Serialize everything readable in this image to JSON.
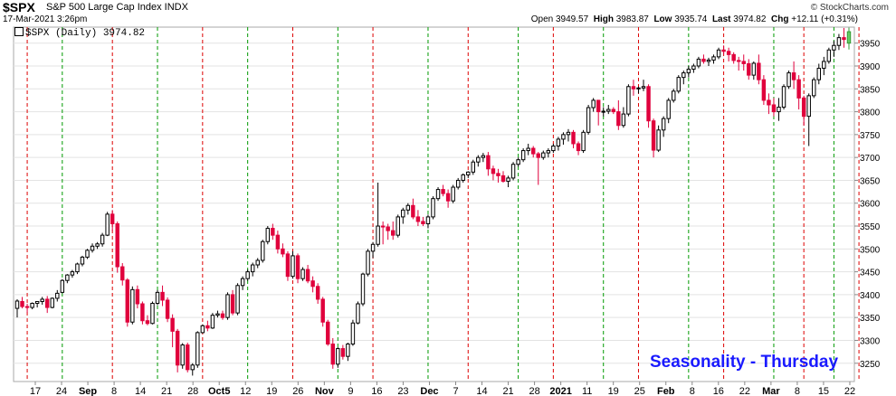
{
  "header": {
    "symbol": "$SPX",
    "name": "S&P 500 Large Cap Index INDX",
    "date": "17-Mar-2021 3:26pm",
    "watermark": "© StockCharts.com",
    "open_label": "Open",
    "open": "3949.57",
    "high_label": "High",
    "high": "3983.87",
    "low_label": "Low",
    "low": "3935.74",
    "last_label": "Last",
    "last": "3974.82",
    "chg_label": "Chg",
    "chg": "+12.11 (+0.31%)"
  },
  "legend": {
    "text": "$SPX (Daily) 3974.82"
  },
  "annotation": {
    "text": "Seasonality - Thursday"
  },
  "colors": {
    "up": "#ffffff",
    "down": "#e0003c",
    "neutral": "#000000",
    "last": "#66cc66",
    "red_line": "#dd0000",
    "green_line": "#009900"
  },
  "chart_data": {
    "type": "candlestick",
    "y_axis": {
      "ylim": [
        3210,
        3985
      ],
      "ticks": [
        3250,
        3300,
        3350,
        3400,
        3450,
        3500,
        3550,
        3600,
        3650,
        3700,
        3750,
        3800,
        3850,
        3900,
        3950
      ],
      "side": "right"
    },
    "x_ticks": [
      "17",
      "24",
      "Sep",
      "8",
      "14",
      "21",
      "28",
      "Oct5",
      "12",
      "19",
      "26",
      "Nov",
      "9",
      "16",
      "23",
      "Dec",
      "7",
      "14",
      "21",
      "28",
      "2021",
      "11",
      "19",
      "25",
      "Feb",
      "8",
      "16",
      "22",
      "Mar",
      "8",
      "15",
      "22"
    ],
    "bold_ticks": [
      "Sep",
      "Oct5",
      "Nov",
      "Dec",
      "2021",
      "Feb",
      "Mar"
    ],
    "candles": [
      [
        3370,
        3390,
        3350,
        3386
      ],
      [
        3385,
        3395,
        3370,
        3374
      ],
      [
        3374,
        3380,
        3360,
        3372
      ],
      [
        3372,
        3383,
        3368,
        3381
      ],
      [
        3381,
        3386,
        3372,
        3385
      ],
      [
        3385,
        3395,
        3378,
        3390
      ],
      [
        3390,
        3397,
        3360,
        3372
      ],
      [
        3372,
        3394,
        3370,
        3392
      ],
      [
        3392,
        3410,
        3385,
        3403
      ],
      [
        3405,
        3434,
        3403,
        3431
      ],
      [
        3431,
        3445,
        3425,
        3443
      ],
      [
        3443,
        3454,
        3437,
        3450
      ],
      [
        3450,
        3470,
        3445,
        3467
      ],
      [
        3467,
        3485,
        3462,
        3482
      ],
      [
        3482,
        3500,
        3478,
        3497
      ],
      [
        3497,
        3512,
        3492,
        3506
      ],
      [
        3506,
        3515,
        3500,
        3511
      ],
      [
        3511,
        3535,
        3505,
        3530
      ],
      [
        3530,
        3581,
        3528,
        3576
      ],
      [
        3576,
        3585,
        3540,
        3555
      ],
      [
        3555,
        3560,
        3448,
        3461
      ],
      [
        3461,
        3469,
        3420,
        3432
      ],
      [
        3432,
        3436,
        3330,
        3340
      ],
      [
        3340,
        3418,
        3335,
        3411
      ],
      [
        3411,
        3420,
        3370,
        3380
      ],
      [
        3380,
        3385,
        3335,
        3343
      ],
      [
        3343,
        3355,
        3333,
        3337
      ],
      [
        3337,
        3385,
        3335,
        3381
      ],
      [
        3381,
        3410,
        3377,
        3405
      ],
      [
        3405,
        3420,
        3375,
        3388
      ],
      [
        3388,
        3394,
        3340,
        3348
      ],
      [
        3348,
        3357,
        3285,
        3320
      ],
      [
        3320,
        3325,
        3230,
        3246
      ],
      [
        3246,
        3294,
        3238,
        3290
      ],
      [
        3290,
        3295,
        3230,
        3236
      ],
      [
        3236,
        3250,
        3223,
        3246
      ],
      [
        3246,
        3320,
        3240,
        3317
      ],
      [
        3317,
        3335,
        3315,
        3332
      ],
      [
        3332,
        3343,
        3320,
        3327
      ],
      [
        3327,
        3360,
        3325,
        3355
      ],
      [
        3355,
        3365,
        3350,
        3358
      ],
      [
        3358,
        3365,
        3345,
        3350
      ],
      [
        3350,
        3405,
        3345,
        3400
      ],
      [
        3400,
        3410,
        3355,
        3360
      ],
      [
        3360,
        3425,
        3355,
        3420
      ],
      [
        3420,
        3440,
        3410,
        3435
      ],
      [
        3435,
        3455,
        3430,
        3450
      ],
      [
        3450,
        3470,
        3440,
        3465
      ],
      [
        3465,
        3480,
        3458,
        3475
      ],
      [
        3475,
        3520,
        3470,
        3516
      ],
      [
        3516,
        3550,
        3510,
        3545
      ],
      [
        3545,
        3555,
        3520,
        3530
      ],
      [
        3530,
        3540,
        3490,
        3500
      ],
      [
        3500,
        3512,
        3482,
        3489
      ],
      [
        3489,
        3495,
        3430,
        3440
      ],
      [
        3440,
        3495,
        3435,
        3485
      ],
      [
        3485,
        3490,
        3425,
        3435
      ],
      [
        3435,
        3460,
        3430,
        3455
      ],
      [
        3455,
        3465,
        3425,
        3430
      ],
      [
        3430,
        3440,
        3405,
        3418
      ],
      [
        3418,
        3425,
        3380,
        3390
      ],
      [
        3390,
        3395,
        3330,
        3340
      ],
      [
        3340,
        3345,
        3288,
        3292
      ],
      [
        3292,
        3305,
        3238,
        3248
      ],
      [
        3248,
        3285,
        3240,
        3282
      ],
      [
        3282,
        3290,
        3258,
        3265
      ],
      [
        3265,
        3295,
        3255,
        3292
      ],
      [
        3292,
        3345,
        3288,
        3338
      ],
      [
        3338,
        3385,
        3335,
        3380
      ],
      [
        3380,
        3448,
        3375,
        3445
      ],
      [
        3445,
        3500,
        3440,
        3495
      ],
      [
        3495,
        3515,
        3480,
        3510
      ],
      [
        3510,
        3645,
        3505,
        3550
      ],
      [
        3550,
        3560,
        3510,
        3548
      ],
      [
        3548,
        3555,
        3520,
        3540
      ],
      [
        3540,
        3560,
        3520,
        3530
      ],
      [
        3530,
        3575,
        3525,
        3570
      ],
      [
        3570,
        3590,
        3555,
        3585
      ],
      [
        3585,
        3600,
        3575,
        3595
      ],
      [
        3595,
        3610,
        3565,
        3570
      ],
      [
        3570,
        3585,
        3550,
        3560
      ],
      [
        3560,
        3570,
        3550,
        3555
      ],
      [
        3555,
        3575,
        3545,
        3570
      ],
      [
        3570,
        3615,
        3565,
        3610
      ],
      [
        3610,
        3635,
        3605,
        3630
      ],
      [
        3630,
        3640,
        3615,
        3621
      ],
      [
        3621,
        3630,
        3590,
        3605
      ],
      [
        3605,
        3640,
        3600,
        3635
      ],
      [
        3635,
        3655,
        3630,
        3650
      ],
      [
        3650,
        3665,
        3645,
        3662
      ],
      [
        3662,
        3670,
        3655,
        3668
      ],
      [
        3668,
        3695,
        3662,
        3690
      ],
      [
        3690,
        3705,
        3680,
        3700
      ],
      [
        3700,
        3710,
        3690,
        3704
      ],
      [
        3704,
        3712,
        3660,
        3675
      ],
      [
        3675,
        3682,
        3650,
        3665
      ],
      [
        3665,
        3675,
        3645,
        3660
      ],
      [
        3660,
        3670,
        3645,
        3648
      ],
      [
        3648,
        3660,
        3635,
        3655
      ],
      [
        3655,
        3690,
        3650,
        3685
      ],
      [
        3685,
        3700,
        3680,
        3695
      ],
      [
        3695,
        3720,
        3690,
        3715
      ],
      [
        3715,
        3730,
        3705,
        3720
      ],
      [
        3720,
        3725,
        3700,
        3708
      ],
      [
        3708,
        3712,
        3640,
        3700
      ],
      [
        3700,
        3715,
        3695,
        3710
      ],
      [
        3710,
        3720,
        3700,
        3715
      ],
      [
        3715,
        3730,
        3710,
        3725
      ],
      [
        3725,
        3745,
        3715,
        3740
      ],
      [
        3740,
        3755,
        3728,
        3750
      ],
      [
        3750,
        3762,
        3735,
        3755
      ],
      [
        3755,
        3760,
        3720,
        3730
      ],
      [
        3730,
        3735,
        3705,
        3715
      ],
      [
        3715,
        3760,
        3710,
        3755
      ],
      [
        3755,
        3815,
        3750,
        3809
      ],
      [
        3809,
        3830,
        3800,
        3825
      ],
      [
        3825,
        3826,
        3770,
        3800
      ],
      [
        3800,
        3810,
        3790,
        3801
      ],
      [
        3801,
        3815,
        3795,
        3805
      ],
      [
        3805,
        3810,
        3795,
        3800
      ],
      [
        3800,
        3825,
        3760,
        3770
      ],
      [
        3770,
        3810,
        3765,
        3795
      ],
      [
        3795,
        3860,
        3790,
        3855
      ],
      [
        3855,
        3870,
        3835,
        3850
      ],
      [
        3850,
        3855,
        3840,
        3852
      ],
      [
        3852,
        3870,
        3845,
        3855
      ],
      [
        3855,
        3860,
        3765,
        3780
      ],
      [
        3780,
        3785,
        3700,
        3716
      ],
      [
        3716,
        3770,
        3712,
        3760
      ],
      [
        3760,
        3790,
        3745,
        3785
      ],
      [
        3785,
        3830,
        3775,
        3825
      ],
      [
        3825,
        3850,
        3820,
        3845
      ],
      [
        3845,
        3880,
        3840,
        3875
      ],
      [
        3875,
        3890,
        3860,
        3885
      ],
      [
        3885,
        3900,
        3875,
        3893
      ],
      [
        3893,
        3905,
        3885,
        3900
      ],
      [
        3900,
        3920,
        3895,
        3915
      ],
      [
        3915,
        3925,
        3905,
        3910
      ],
      [
        3910,
        3918,
        3900,
        3913
      ],
      [
        3913,
        3925,
        3905,
        3920
      ],
      [
        3920,
        3940,
        3915,
        3935
      ],
      [
        3935,
        3945,
        3925,
        3932
      ],
      [
        3932,
        3940,
        3910,
        3925
      ],
      [
        3925,
        3930,
        3905,
        3912
      ],
      [
        3912,
        3920,
        3890,
        3910
      ],
      [
        3910,
        3925,
        3890,
        3905
      ],
      [
        3905,
        3915,
        3870,
        3880
      ],
      [
        3880,
        3910,
        3870,
        3906
      ],
      [
        3906,
        3925,
        3860,
        3870
      ],
      [
        3870,
        3880,
        3815,
        3825
      ],
      [
        3825,
        3840,
        3795,
        3815
      ],
      [
        3815,
        3830,
        3790,
        3800
      ],
      [
        3800,
        3830,
        3780,
        3810
      ],
      [
        3810,
        3860,
        3805,
        3855
      ],
      [
        3855,
        3890,
        3850,
        3885
      ],
      [
        3885,
        3910,
        3850,
        3870
      ],
      [
        3870,
        3880,
        3805,
        3830
      ],
      [
        3830,
        3835,
        3770,
        3790
      ],
      [
        3790,
        3840,
        3725,
        3835
      ],
      [
        3835,
        3875,
        3830,
        3870
      ],
      [
        3870,
        3905,
        3860,
        3895
      ],
      [
        3895,
        3920,
        3880,
        3910
      ],
      [
        3910,
        3940,
        3905,
        3935
      ],
      [
        3935,
        3955,
        3920,
        3945
      ],
      [
        3945,
        3970,
        3935,
        3962
      ],
      [
        3962,
        3983,
        3940,
        3958
      ],
      [
        3950,
        3984,
        3936,
        3975
      ]
    ],
    "red_line_days": [
      2,
      19,
      37,
      55,
      71,
      90,
      107,
      124,
      141,
      157,
      168
    ],
    "green_line_days": [
      9,
      28,
      46,
      64,
      82,
      100,
      117,
      134,
      151,
      163
    ],
    "colors_note": "up candles hollow, down candles red"
  }
}
